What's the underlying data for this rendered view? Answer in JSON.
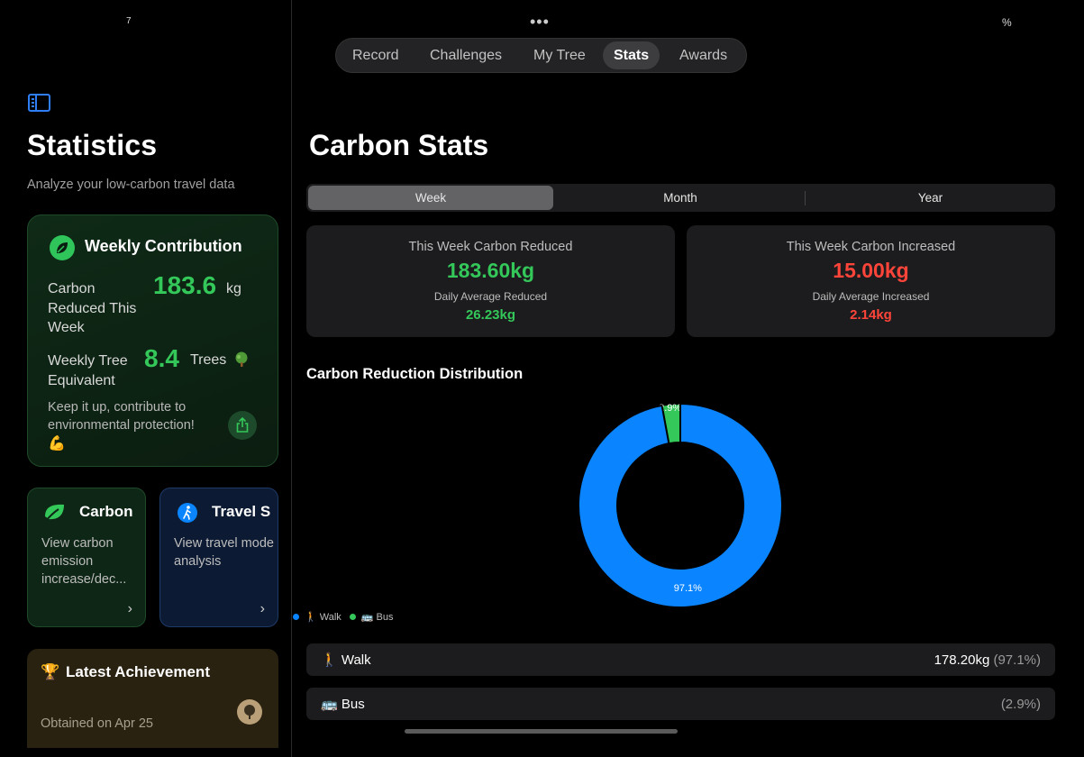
{
  "status": {
    "left": "7",
    "dots": "•••",
    "right": "%"
  },
  "sidebar": {
    "title": "Statistics",
    "subtitle": "Analyze your low-carbon travel data",
    "weekly": {
      "title": "Weekly Contribution",
      "reduced_label": "Carbon Reduced This Week",
      "reduced_value": "183.6",
      "reduced_unit": "kg",
      "tree_label": "Weekly Tree Equivalent",
      "tree_value": "8.4",
      "tree_unit": "Trees",
      "message": "Keep it up, contribute to environmental protection!",
      "emoji": "💪"
    },
    "carbon_card": {
      "title": "Carbon",
      "text": "View carbon emission increase/dec...",
      "chevron": "›"
    },
    "travel_card": {
      "title": "Travel S",
      "text": "View travel mode analysis",
      "chevron": "›"
    },
    "achievement": {
      "icon": "🏆",
      "title": "Latest Achievement",
      "date": "Obtained on Apr 25"
    }
  },
  "tabs": [
    {
      "label": "Record"
    },
    {
      "label": "Challenges"
    },
    {
      "label": "My Tree"
    },
    {
      "label": "Stats"
    },
    {
      "label": "Awards"
    }
  ],
  "active_tab": "Stats",
  "main": {
    "title": "Carbon Stats",
    "periods": [
      "Week",
      "Month",
      "Year"
    ],
    "active_period": "Week",
    "reduced": {
      "label": "This Week Carbon Reduced",
      "value": "183.60kg",
      "sub_label": "Daily Average Reduced",
      "sub_value": "26.23kg"
    },
    "increased": {
      "label": "This Week Carbon Increased",
      "value": "15.00kg",
      "sub_label": "Daily Average Increased",
      "sub_value": "2.14kg"
    },
    "distribution_title": "Carbon Reduction Distribution",
    "legend": [
      {
        "label": "🚶 Walk",
        "color": "#0a84ff"
      },
      {
        "label": "🚌 Bus",
        "color": "#34c759"
      }
    ],
    "rows": [
      {
        "label": "🚶 Walk",
        "value": "178.20kg",
        "pct": "(97.1%)"
      },
      {
        "label": "🚌 Bus",
        "value": "",
        "pct": "(2.9%)"
      }
    ]
  },
  "chart_data": {
    "type": "pie",
    "title": "Carbon Reduction Distribution",
    "categories": [
      "Walk",
      "Bus"
    ],
    "values": [
      97.1,
      2.9
    ],
    "labels": [
      "97.1%",
      "2.9%"
    ],
    "colors": [
      "#0a84ff",
      "#34c759"
    ],
    "legend_position": "bottom-left",
    "donut": true
  },
  "colors": {
    "accent_green": "#34c759",
    "accent_red": "#ff453a",
    "accent_blue": "#0a84ff"
  }
}
